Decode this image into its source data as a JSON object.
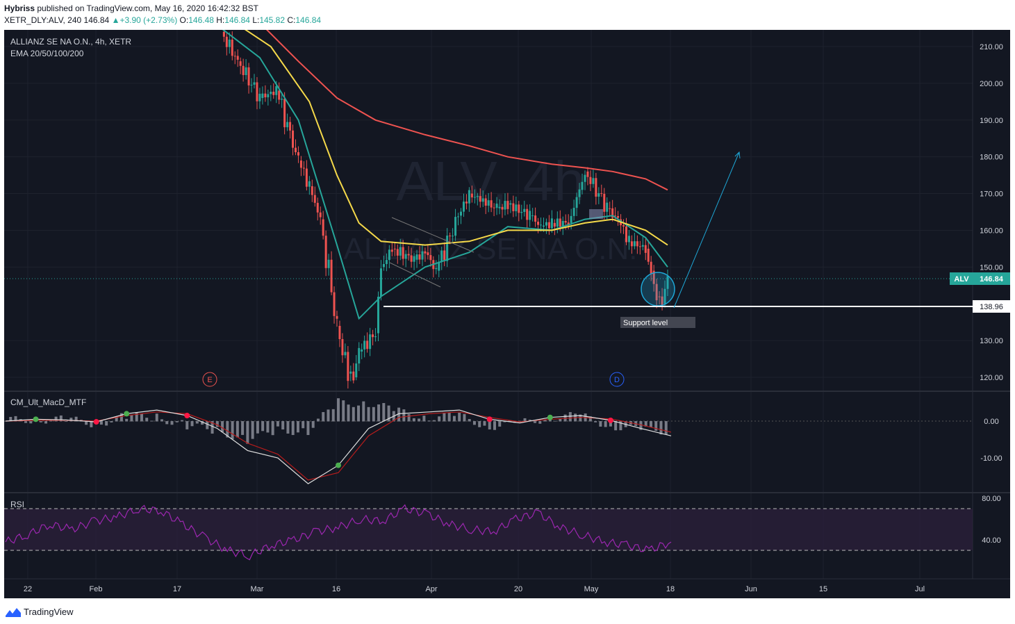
{
  "header": {
    "author": "Hybriss",
    "published": " published on TradingView.com, May 16, 2020 16:42:32 BST",
    "symbol_line": "XETR_DLY:ALV, 240",
    "last": "146.84",
    "change": "+3.90 (+2.73%)",
    "open_label": "O:",
    "open": "146.48",
    "high_label": "H:",
    "high": "146.84",
    "low_label": "L:",
    "low": "145.82",
    "close_label": "C:",
    "close": "146.84"
  },
  "legend": {
    "title": "ALLIANZ SE NA O.N., 4h, XETR",
    "ema": "EMA 20/50/100/200",
    "macd": "CM_Ult_MacD_MTF",
    "rsi": "RSI"
  },
  "watermark": {
    "big": "ALV, 4h",
    "small": "ALLIANZ SE NA O.N."
  },
  "annotations": {
    "support_label": "Support level",
    "support_price": "138.96",
    "event_e": "E",
    "event_d": "D"
  },
  "footer": {
    "brand": "TradingView"
  },
  "colors": {
    "bg": "#131722",
    "up": "#26a69a",
    "down": "#ef5350",
    "ema20": "#26a69a",
    "ema50": "#f5d94a",
    "ema200": "#ef5350",
    "rsi_line": "#9c27b0",
    "arrow": "#1ea8d8"
  },
  "chart_data": [
    {
      "type": "line",
      "title": "ALLIANZ SE NA O.N., 4h, XETR",
      "price_axis": [
        "210.00",
        "200.00",
        "190.00",
        "180.00",
        "170.00",
        "160.00",
        "150.00",
        "130.00",
        "120.00"
      ],
      "ylim": [
        115,
        215
      ],
      "current_price": {
        "label": "ALV",
        "value": 146.84
      },
      "support": 138.96,
      "x_ticks": [
        "22",
        "Feb",
        "17",
        "Mar",
        "16",
        "Apr",
        "20",
        "May",
        "18",
        "Jun",
        "15",
        "Jul"
      ],
      "series": [
        {
          "name": "Close",
          "x": [
            "Feb 24",
            "Feb 27",
            "Mar 2",
            "Mar 5",
            "Mar 9",
            "Mar 11",
            "Mar 13",
            "Mar 16",
            "Mar 18",
            "Mar 19",
            "Mar 20",
            "Mar 23",
            "Mar 24",
            "Mar 26",
            "Mar 30",
            "Apr 1",
            "Apr 3",
            "Apr 7",
            "Apr 9",
            "Apr 14",
            "Apr 16",
            "Apr 20",
            "Apr 22",
            "Apr 24",
            "Apr 27",
            "Apr 29",
            "Apr 30",
            "May 4",
            "May 5",
            "May 6",
            "May 8",
            "May 11",
            "May 12",
            "May 13",
            "May 14",
            "May 15"
          ],
          "values": [
            214,
            206,
            196,
            198,
            179,
            172,
            163,
            134,
            121,
            120,
            127,
            132,
            150,
            155,
            152,
            154,
            149,
            164,
            170,
            166,
            167,
            164,
            161,
            162,
            162,
            171,
            176,
            166,
            164,
            163,
            157,
            155,
            149,
            142,
            140,
            146.84
          ]
        },
        {
          "name": "EMA 20",
          "x": [
            "Feb 24",
            "Mar 2",
            "Mar 9",
            "Mar 16",
            "Mar 20",
            "Mar 24",
            "Apr 1",
            "Apr 9",
            "Apr 16",
            "Apr 24",
            "Apr 30",
            "May 5",
            "May 11",
            "May 15"
          ],
          "values": [
            215,
            207,
            190,
            156,
            136,
            142,
            150,
            154,
            161,
            160,
            163,
            164,
            158,
            150
          ]
        },
        {
          "name": "EMA 50",
          "x": [
            "Feb 28",
            "Mar 4",
            "Mar 11",
            "Mar 16",
            "Mar 20",
            "Mar 24",
            "Apr 1",
            "Apr 9",
            "Apr 16",
            "Apr 24",
            "Apr 30",
            "May 5",
            "May 11",
            "May 15"
          ],
          "values": [
            215,
            210,
            195,
            175,
            162,
            157,
            156,
            157,
            160,
            160,
            162,
            163,
            160,
            156
          ]
        },
        {
          "name": "EMA 200",
          "x": [
            "Mar 3",
            "Mar 9",
            "Mar 16",
            "Mar 23",
            "Apr 1",
            "Apr 9",
            "Apr 16",
            "Apr 24",
            "Apr 30",
            "May 5",
            "May 11",
            "May 15"
          ],
          "values": [
            215,
            206,
            196,
            190,
            186,
            183,
            180,
            178,
            177,
            176,
            174,
            171
          ]
        }
      ]
    },
    {
      "type": "line",
      "title": "CM_Ult_MacD_MTF",
      "ylim": [
        -18,
        8
      ],
      "y_ticks": [
        "0.00",
        "-10.00"
      ],
      "series": [
        {
          "name": "MACD",
          "values": [
            0,
            0.5,
            0.3,
            -0.2,
            2,
            3,
            1.5,
            -2,
            -8,
            -10,
            -17,
            -12,
            -2,
            2,
            2.5,
            3,
            0.5,
            -0.5,
            1,
            1.5,
            0.2,
            -2,
            -4
          ]
        },
        {
          "name": "Signal",
          "values": [
            0,
            0.2,
            0.2,
            0,
            1.5,
            2.5,
            2,
            -1,
            -6,
            -9,
            -16,
            -14,
            -4,
            1,
            2,
            2.5,
            1,
            -0.2,
            0.5,
            1,
            0.6,
            -1,
            -3
          ]
        }
      ]
    },
    {
      "type": "line",
      "title": "RSI",
      "ylim": [
        20,
        85
      ],
      "y_ticks": [
        "80.00",
        "40.00"
      ],
      "bands": [
        30,
        70
      ],
      "series": [
        {
          "name": "RSI",
          "values": [
            38,
            45,
            55,
            50,
            58,
            62,
            70,
            68,
            55,
            42,
            30,
            25,
            35,
            40,
            48,
            52,
            60,
            58,
            70,
            65,
            55,
            50,
            48,
            60,
            66,
            52,
            45,
            38,
            35,
            30,
            38
          ]
        }
      ]
    }
  ]
}
